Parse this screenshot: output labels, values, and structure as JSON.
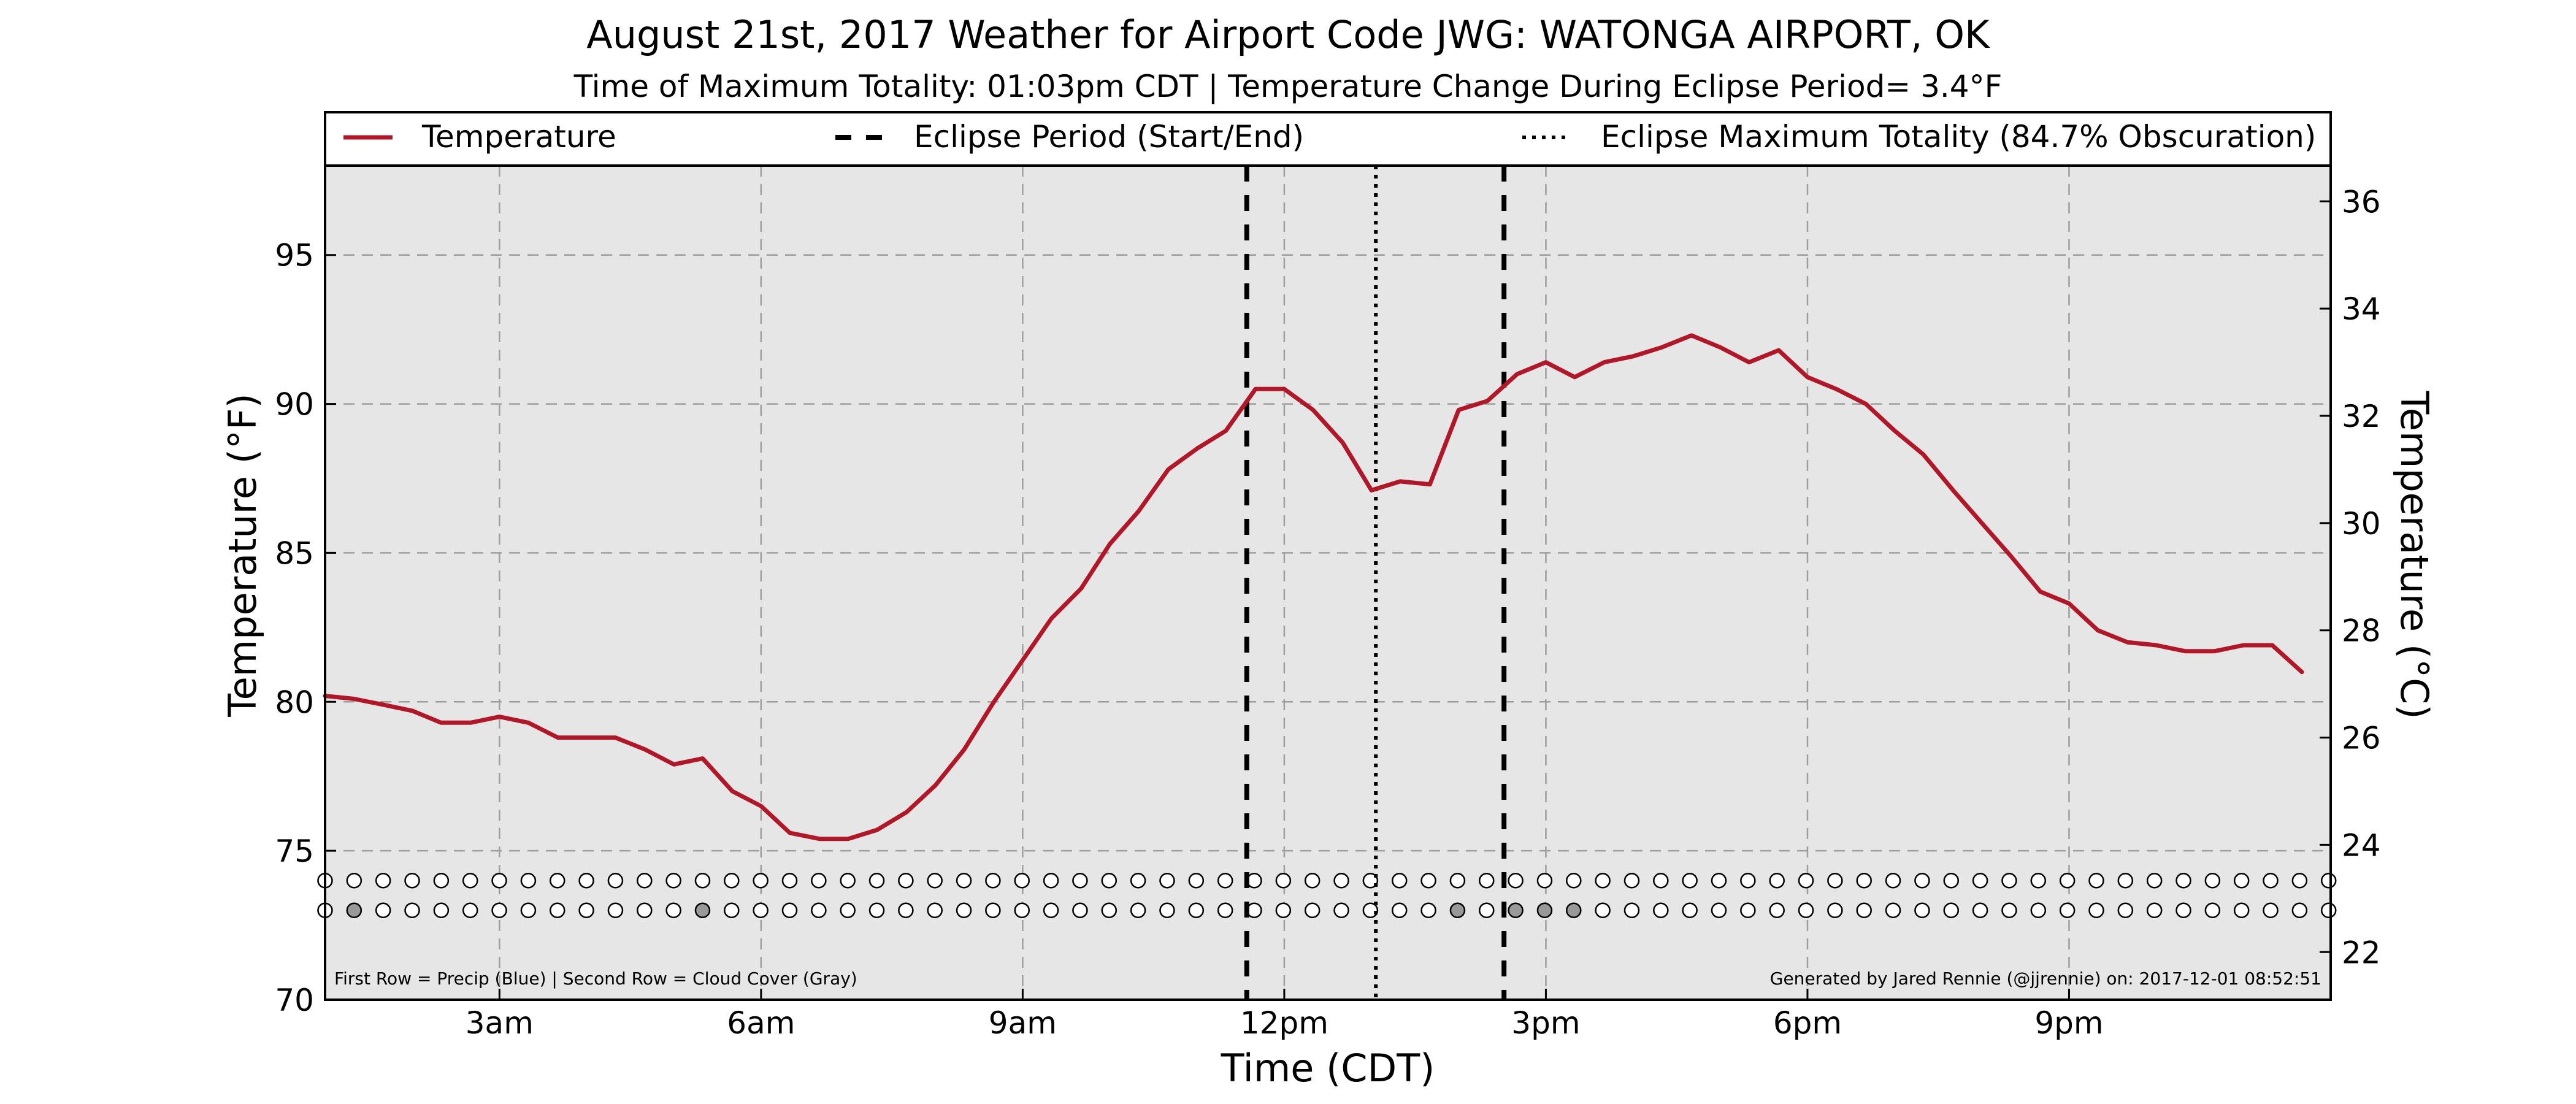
{
  "chart_data": {
    "type": "line",
    "title": "August 21st, 2017 Weather for Airport Code JWG: WATONGA AIRPORT, OK",
    "subtitle": "Time of Maximum Totality: 01:03pm CDT | Temperature Change During Eclipse Period= 3.4°F",
    "xlabel": "Time (CDT)",
    "ylabel": "Temperature (°F)",
    "ylabel_right": "Temperature (°C)",
    "x_unit": "hour of day (CDT)",
    "xlim": [
      1.0,
      24.0
    ],
    "ylim": [
      70,
      98
    ],
    "ylim_right_c": [
      21.11,
      36.67
    ],
    "x_ticks": [
      {
        "x": 3,
        "label": "3am"
      },
      {
        "x": 6,
        "label": "6am"
      },
      {
        "x": 9,
        "label": "9am"
      },
      {
        "x": 12,
        "label": "12pm"
      },
      {
        "x": 15,
        "label": "3pm"
      },
      {
        "x": 18,
        "label": "6pm"
      },
      {
        "x": 21,
        "label": "9pm"
      }
    ],
    "y_ticks": [
      {
        "y": 70,
        "label": "70"
      },
      {
        "y": 75,
        "label": "75"
      },
      {
        "y": 80,
        "label": "80"
      },
      {
        "y": 85,
        "label": "85"
      },
      {
        "y": 90,
        "label": "90"
      },
      {
        "y": 95,
        "label": "95"
      }
    ],
    "y_ticks_right": [
      {
        "c": 22,
        "label": "22"
      },
      {
        "c": 24,
        "label": "24"
      },
      {
        "c": 26,
        "label": "26"
      },
      {
        "c": 28,
        "label": "28"
      },
      {
        "c": 30,
        "label": "30"
      },
      {
        "c": 32,
        "label": "32"
      },
      {
        "c": 34,
        "label": "34"
      },
      {
        "c": 36,
        "label": "36"
      }
    ],
    "grid": true,
    "legend_placement": "top",
    "legend": [
      {
        "label": "Temperature",
        "style": "solid",
        "color": "#b0182a"
      },
      {
        "label": "Eclipse Period (Start/End)",
        "style": "dashed",
        "color": "#000000"
      },
      {
        "label": "Eclipse Maximum Totality (84.7% Obscuration)",
        "style": "dotted",
        "color": "#000000"
      }
    ],
    "series": [
      {
        "name": "Temperature",
        "color": "#b0182a",
        "points": [
          [
            1.0,
            80.2
          ],
          [
            1.33,
            80.1
          ],
          [
            1.67,
            79.9
          ],
          [
            2.0,
            79.7
          ],
          [
            2.33,
            79.3
          ],
          [
            2.67,
            79.3
          ],
          [
            3.0,
            79.5
          ],
          [
            3.33,
            79.3
          ],
          [
            3.67,
            78.8
          ],
          [
            4.0,
            78.8
          ],
          [
            4.33,
            78.8
          ],
          [
            4.67,
            78.4
          ],
          [
            5.0,
            77.9
          ],
          [
            5.33,
            78.1
          ],
          [
            5.67,
            77.0
          ],
          [
            6.0,
            76.5
          ],
          [
            6.33,
            75.6
          ],
          [
            6.67,
            75.4
          ],
          [
            7.0,
            75.4
          ],
          [
            7.33,
            75.7
          ],
          [
            7.67,
            76.3
          ],
          [
            8.0,
            77.2
          ],
          [
            8.33,
            78.4
          ],
          [
            8.67,
            80.0
          ],
          [
            9.0,
            81.4
          ],
          [
            9.33,
            82.8
          ],
          [
            9.67,
            83.8
          ],
          [
            10.0,
            85.3
          ],
          [
            10.33,
            86.4
          ],
          [
            10.67,
            87.8
          ],
          [
            11.0,
            88.5
          ],
          [
            11.33,
            89.1
          ],
          [
            11.67,
            90.5
          ],
          [
            12.0,
            90.5
          ],
          [
            12.33,
            89.8
          ],
          [
            12.67,
            88.7
          ],
          [
            13.0,
            87.1
          ],
          [
            13.33,
            87.4
          ],
          [
            13.67,
            87.3
          ],
          [
            14.0,
            89.8
          ],
          [
            14.33,
            90.1
          ],
          [
            14.67,
            91.0
          ],
          [
            15.0,
            91.4
          ],
          [
            15.33,
            90.9
          ],
          [
            15.67,
            91.4
          ],
          [
            16.0,
            91.6
          ],
          [
            16.33,
            91.9
          ],
          [
            16.67,
            92.3
          ],
          [
            17.0,
            91.9
          ],
          [
            17.33,
            91.4
          ],
          [
            17.67,
            91.8
          ],
          [
            18.0,
            90.9
          ],
          [
            18.33,
            90.5
          ],
          [
            18.67,
            90.0
          ],
          [
            19.0,
            89.1
          ],
          [
            19.33,
            88.3
          ],
          [
            19.67,
            87.1
          ],
          [
            20.0,
            86.0
          ],
          [
            20.33,
            84.9
          ],
          [
            20.67,
            83.7
          ],
          [
            21.0,
            83.3
          ],
          [
            21.33,
            82.4
          ],
          [
            21.67,
            82.0
          ],
          [
            22.0,
            81.9
          ],
          [
            22.33,
            81.7
          ],
          [
            22.67,
            81.7
          ],
          [
            23.0,
            81.9
          ],
          [
            23.33,
            81.9
          ],
          [
            23.67,
            81.0
          ]
        ]
      }
    ],
    "eclipse_start": 11.57,
    "eclipse_end": 14.52,
    "eclipse_max": 13.05,
    "indicator_rows": {
      "precip_y": 74,
      "cloud_y": 73,
      "x_start": 1.0,
      "x_step": 0.333,
      "count": 70,
      "cloud_marked": [
        1,
        13,
        39,
        41,
        42,
        43
      ],
      "empty_color": "#ffffff",
      "cloud_color": "#999999"
    }
  },
  "footnote_left": "First Row = Precip (Blue) | Second Row = Cloud Cover (Gray)",
  "footnote_right": "Generated by Jared Rennie (@jjrennie) on: 2017-12-01 08:52:51",
  "colors": {
    "plot_background": "#e6e6e6",
    "grid": "#9e9e9e",
    "temperature_line": "#b0182a"
  }
}
